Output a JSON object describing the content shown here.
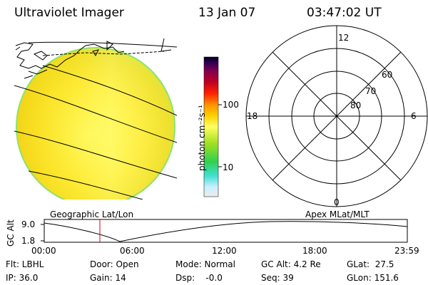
{
  "header": {
    "instrument": "Ultraviolet Imager",
    "date": "13 Jan 07",
    "time": "03:47:02 UT"
  },
  "colorbar": {
    "label": "photon cm⁻²s⁻¹",
    "ticks": [
      "100",
      "10"
    ],
    "colors": [
      "#e6e6e6",
      "#c8f0f0",
      "#40e0d0",
      "#40d040",
      "#a0e020",
      "#ffff60",
      "#ffd000",
      "#ff9000",
      "#ff2000",
      "#c00020",
      "#800040",
      "#400060",
      "#000030"
    ]
  },
  "polar_plot": {
    "mlt_labels": [
      "12",
      "6",
      "0",
      "18"
    ],
    "lat_labels": [
      "60",
      "70",
      "80"
    ]
  },
  "orbit_plot": {
    "ylabel": "GC Alt",
    "yticks": [
      "9.0",
      "1.8"
    ],
    "left_title": "Geographic Lat/Lon",
    "right_title": "Apex MLat/MLT",
    "xticks": [
      "00:00",
      "06:00",
      "12:00",
      "18:00",
      "23:59"
    ],
    "marker_color": "#e00000"
  },
  "info": {
    "flt": "Flt: LBHL",
    "ip": "IP: 36.0",
    "door": "Door: Open",
    "gain": "Gain: 14",
    "mode": "Mode: Normal",
    "dsp": "Dsp:    -0.0",
    "gcalt": "GC Alt: 4.2 Re",
    "seq": "Seq: 39",
    "glat": "GLat:  27.5",
    "glon": "GLon: 151.6"
  }
}
